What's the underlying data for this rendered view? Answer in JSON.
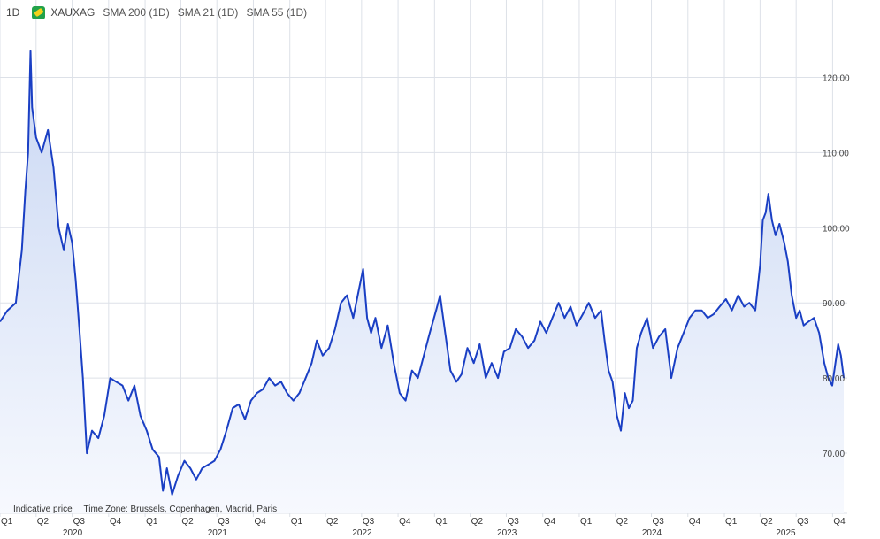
{
  "header": {
    "timeframe": "1D",
    "symbol": "XAUXAG",
    "indicators": [
      "SMA 200 (1D)",
      "SMA 21 (1D)",
      "SMA 55 (1D)"
    ]
  },
  "footnote": {
    "price_note": "Indicative price",
    "timezone": "Time Zone: Brussels, Copenhagen, Madrid, Paris"
  },
  "colors": {
    "line": "#1a3fc4",
    "fill_top": "#c9d7f3",
    "fill_bottom": "#f7f9fe",
    "grid": "#dde1e8"
  },
  "chart_data": {
    "type": "area",
    "series": [
      {
        "points": [
          [
            "2020-01-01",
            87.5
          ],
          [
            "2020-01-20",
            89.0
          ],
          [
            "2020-02-10",
            90.0
          ],
          [
            "2020-02-25",
            97.0
          ],
          [
            "2020-03-05",
            105.0
          ],
          [
            "2020-03-12",
            110.0
          ],
          [
            "2020-03-18",
            123.5
          ],
          [
            "2020-03-22",
            116.0
          ],
          [
            "2020-04-01",
            112.0
          ],
          [
            "2020-04-15",
            110.0
          ],
          [
            "2020-05-01",
            113.0
          ],
          [
            "2020-05-15",
            108.0
          ],
          [
            "2020-05-28",
            100.0
          ],
          [
            "2020-06-10",
            97.0
          ],
          [
            "2020-06-20",
            100.5
          ],
          [
            "2020-07-01",
            98.0
          ],
          [
            "2020-07-10",
            93.0
          ],
          [
            "2020-07-20",
            86.0
          ],
          [
            "2020-07-28",
            80.0
          ],
          [
            "2020-08-07",
            70.0
          ],
          [
            "2020-08-20",
            73.0
          ],
          [
            "2020-09-05",
            72.0
          ],
          [
            "2020-09-20",
            75.0
          ],
          [
            "2020-10-05",
            80.0
          ],
          [
            "2020-10-20",
            79.5
          ],
          [
            "2020-11-05",
            79.0
          ],
          [
            "2020-11-20",
            77.0
          ],
          [
            "2020-12-05",
            79.0
          ],
          [
            "2020-12-20",
            75.0
          ],
          [
            "2021-01-05",
            73.0
          ],
          [
            "2021-01-20",
            70.5
          ],
          [
            "2021-02-05",
            69.5
          ],
          [
            "2021-02-15",
            65.0
          ],
          [
            "2021-02-25",
            68.0
          ],
          [
            "2021-03-10",
            64.5
          ],
          [
            "2021-03-25",
            67.0
          ],
          [
            "2021-04-10",
            69.0
          ],
          [
            "2021-04-25",
            68.0
          ],
          [
            "2021-05-10",
            66.5
          ],
          [
            "2021-05-25",
            68.0
          ],
          [
            "2021-06-10",
            68.5
          ],
          [
            "2021-06-25",
            69.0
          ],
          [
            "2021-07-10",
            70.5
          ],
          [
            "2021-07-25",
            73.0
          ],
          [
            "2021-08-10",
            76.0
          ],
          [
            "2021-08-25",
            76.5
          ],
          [
            "2021-09-10",
            74.5
          ],
          [
            "2021-09-25",
            77.0
          ],
          [
            "2021-10-10",
            78.0
          ],
          [
            "2021-10-25",
            78.5
          ],
          [
            "2021-11-10",
            80.0
          ],
          [
            "2021-11-25",
            79.0
          ],
          [
            "2021-12-10",
            79.5
          ],
          [
            "2021-12-25",
            78.0
          ],
          [
            "2022-01-10",
            77.0
          ],
          [
            "2022-01-25",
            78.0
          ],
          [
            "2022-02-10",
            80.0
          ],
          [
            "2022-02-25",
            82.0
          ],
          [
            "2022-03-10",
            85.0
          ],
          [
            "2022-03-25",
            83.0
          ],
          [
            "2022-04-10",
            84.0
          ],
          [
            "2022-04-25",
            86.5
          ],
          [
            "2022-05-10",
            90.0
          ],
          [
            "2022-05-25",
            91.0
          ],
          [
            "2022-06-10",
            88.0
          ],
          [
            "2022-06-25",
            92.0
          ],
          [
            "2022-07-05",
            94.5
          ],
          [
            "2022-07-15",
            88.0
          ],
          [
            "2022-07-25",
            86.0
          ],
          [
            "2022-08-05",
            88.0
          ],
          [
            "2022-08-20",
            84.0
          ],
          [
            "2022-09-05",
            87.0
          ],
          [
            "2022-09-20",
            82.0
          ],
          [
            "2022-10-05",
            78.0
          ],
          [
            "2022-10-20",
            77.0
          ],
          [
            "2022-11-05",
            81.0
          ],
          [
            "2022-11-20",
            80.0
          ],
          [
            "2022-12-05",
            83.0
          ],
          [
            "2022-12-20",
            86.0
          ],
          [
            "2023-01-05",
            89.0
          ],
          [
            "2023-01-15",
            91.0
          ],
          [
            "2023-01-28",
            86.0
          ],
          [
            "2023-02-10",
            81.0
          ],
          [
            "2023-02-25",
            79.5
          ],
          [
            "2023-03-10",
            80.5
          ],
          [
            "2023-03-25",
            84.0
          ],
          [
            "2023-04-10",
            82.0
          ],
          [
            "2023-04-25",
            84.5
          ],
          [
            "2023-05-10",
            80.0
          ],
          [
            "2023-05-25",
            82.0
          ],
          [
            "2023-06-10",
            80.0
          ],
          [
            "2023-06-25",
            83.5
          ],
          [
            "2023-07-10",
            84.0
          ],
          [
            "2023-07-25",
            86.5
          ],
          [
            "2023-08-10",
            85.5
          ],
          [
            "2023-08-25",
            84.0
          ],
          [
            "2023-09-10",
            85.0
          ],
          [
            "2023-09-25",
            87.5
          ],
          [
            "2023-10-10",
            86.0
          ],
          [
            "2023-10-25",
            88.0
          ],
          [
            "2023-11-10",
            90.0
          ],
          [
            "2023-11-25",
            88.0
          ],
          [
            "2023-12-10",
            89.5
          ],
          [
            "2023-12-25",
            87.0
          ],
          [
            "2024-01-10",
            88.5
          ],
          [
            "2024-01-25",
            90.0
          ],
          [
            "2024-02-10",
            88.0
          ],
          [
            "2024-02-25",
            89.0
          ],
          [
            "2024-03-05",
            85.0
          ],
          [
            "2024-03-15",
            81.0
          ],
          [
            "2024-03-25",
            79.5
          ],
          [
            "2024-04-05",
            75.0
          ],
          [
            "2024-04-15",
            73.0
          ],
          [
            "2024-04-25",
            78.0
          ],
          [
            "2024-05-05",
            76.0
          ],
          [
            "2024-05-15",
            77.0
          ],
          [
            "2024-05-25",
            84.0
          ],
          [
            "2024-06-05",
            86.0
          ],
          [
            "2024-06-20",
            88.0
          ],
          [
            "2024-07-05",
            84.0
          ],
          [
            "2024-07-20",
            85.5
          ],
          [
            "2024-08-05",
            86.5
          ],
          [
            "2024-08-20",
            80.0
          ],
          [
            "2024-09-05",
            84.0
          ],
          [
            "2024-09-20",
            86.0
          ],
          [
            "2024-10-05",
            88.0
          ],
          [
            "2024-10-20",
            89.0
          ],
          [
            "2024-11-05",
            89.0
          ],
          [
            "2024-11-20",
            88.0
          ],
          [
            "2024-12-05",
            88.5
          ],
          [
            "2024-12-20",
            89.5
          ],
          [
            "2025-01-05",
            90.5
          ],
          [
            "2025-01-20",
            89.0
          ],
          [
            "2025-02-05",
            91.0
          ],
          [
            "2025-02-20",
            89.5
          ],
          [
            "2025-03-05",
            90.0
          ],
          [
            "2025-03-20",
            89.0
          ],
          [
            "2025-04-01",
            95.0
          ],
          [
            "2025-04-08",
            101.0
          ],
          [
            "2025-04-15",
            102.0
          ],
          [
            "2025-04-22",
            104.5
          ],
          [
            "2025-05-01",
            101.0
          ],
          [
            "2025-05-10",
            99.0
          ],
          [
            "2025-05-20",
            100.5
          ],
          [
            "2025-06-01",
            98.0
          ],
          [
            "2025-06-10",
            95.5
          ],
          [
            "2025-06-20",
            91.0
          ],
          [
            "2025-07-01",
            88.0
          ],
          [
            "2025-07-10",
            89.0
          ],
          [
            "2025-07-20",
            87.0
          ],
          [
            "2025-08-01",
            87.5
          ],
          [
            "2025-08-15",
            88.0
          ],
          [
            "2025-08-28",
            86.0
          ],
          [
            "2025-09-10",
            82.0
          ],
          [
            "2025-09-20",
            80.0
          ],
          [
            "2025-09-30",
            79.0
          ],
          [
            "2025-10-08",
            82.0
          ],
          [
            "2025-10-15",
            84.5
          ],
          [
            "2025-10-22",
            83.0
          ],
          [
            "2025-10-29",
            80.0
          ]
        ]
      }
    ],
    "y_ticks": [
      "70.00",
      "80.00",
      "90.00",
      "100.00",
      "110.00",
      "120.00"
    ],
    "ylim": [
      62,
      127
    ],
    "x_range": [
      "2020-01-01",
      "2025-11-07"
    ],
    "quarter_labels": [
      "Q1",
      "Q2",
      "Q3",
      "Q4",
      "Q1",
      "Q2",
      "Q3",
      "Q4",
      "Q1",
      "Q2",
      "Q3",
      "Q4",
      "Q1",
      "Q2",
      "Q3",
      "Q4",
      "Q1",
      "Q2",
      "Q3",
      "Q4",
      "Q1",
      "Q2",
      "Q3",
      "Q4"
    ],
    "year_labels": [
      "2020",
      "2021",
      "2022",
      "2023",
      "2024",
      "2025"
    ],
    "grid": true
  }
}
